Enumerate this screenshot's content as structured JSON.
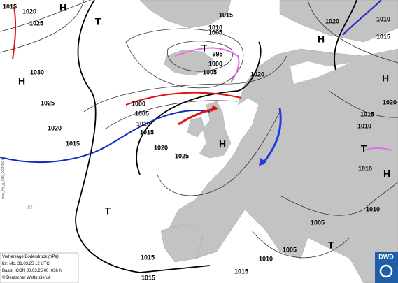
{
  "labels": [
    "1015",
    "1020",
    "H",
    "1025",
    "1015",
    "1010",
    "1005",
    "T",
    "1020",
    "1010",
    "H",
    "1015",
    "T",
    "995",
    "1000",
    "1005",
    "1030",
    "H",
    "1020",
    "H",
    "1025",
    "1000",
    "1005",
    "1020",
    "1015",
    "1010",
    "1020",
    "1010",
    "1015",
    "1015",
    "1020",
    "H",
    "1025",
    "T",
    "1010",
    "H",
    "T",
    "1010",
    "1005",
    "T",
    "1005",
    "1010",
    "1015",
    "1015",
    "1015"
  ],
  "graticule_label": "30",
  "info": {
    "lines": [
      "Vorhersage Bodendruck (hPa)",
      "für:  Mo. 31.03.25  12 UTC",
      "Basis: ICON  30.03.25 00+036 h",
      "© Deutscher Wetterdienst"
    ]
  },
  "side_text": "icon_hk_g_036_000PDG69",
  "logo": "DWD"
}
